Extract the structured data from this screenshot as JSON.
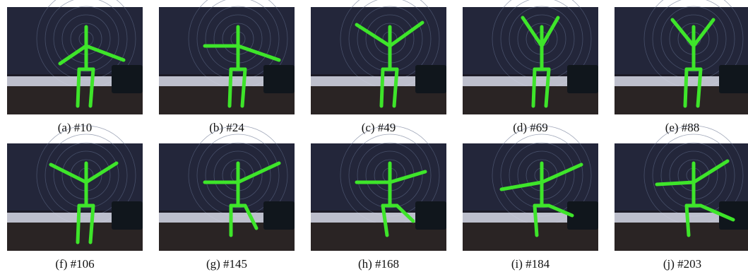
{
  "figure": {
    "panels": [
      {
        "caption": "(a) #10"
      },
      {
        "caption": "(b) #24"
      },
      {
        "caption": "(c) #49"
      },
      {
        "caption": "(d) #69"
      },
      {
        "caption": "(e) #88"
      },
      {
        "caption": "(f) #106"
      },
      {
        "caption": "(g) #145"
      },
      {
        "caption": "(h) #168"
      },
      {
        "caption": "(i) #184"
      },
      {
        "caption": "(j) #203"
      }
    ]
  }
}
